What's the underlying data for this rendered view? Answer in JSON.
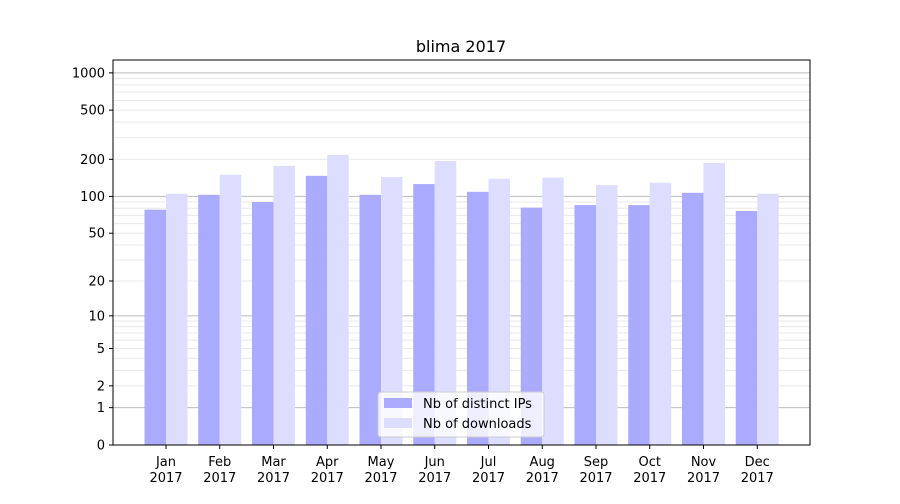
{
  "chart_data": {
    "type": "bar",
    "title": "blima 2017",
    "xlabel": "",
    "ylabel": "",
    "yscale": "log(1+y)",
    "ylim": [
      0,
      1270
    ],
    "yticks": [
      0,
      1,
      2,
      5,
      10,
      20,
      50,
      100,
      200,
      500,
      1000
    ],
    "ytick_labels": [
      "0",
      "1",
      "2",
      "5",
      "10",
      "20",
      "50",
      "100",
      "200",
      "500",
      "1000"
    ],
    "grid": true,
    "legend_position": "bottom-center",
    "categories": [
      "Jan\n2017",
      "Feb\n2017",
      "Mar\n2017",
      "Apr\n2017",
      "May\n2017",
      "Jun\n2017",
      "Jul\n2017",
      "Aug\n2017",
      "Sep\n2017",
      "Oct\n2017",
      "Nov\n2017",
      "Dec\n2017"
    ],
    "series": [
      {
        "name": "Nb of distinct IPs",
        "color": "#aaaaff",
        "values": [
          78,
          103,
          90,
          147,
          103,
          126,
          109,
          81,
          85,
          85,
          107,
          76
        ]
      },
      {
        "name": "Nb of downloads",
        "color": "#ddddff",
        "values": [
          105,
          150,
          177,
          217,
          144,
          194,
          139,
          142,
          124,
          129,
          187,
          105
        ]
      }
    ]
  }
}
